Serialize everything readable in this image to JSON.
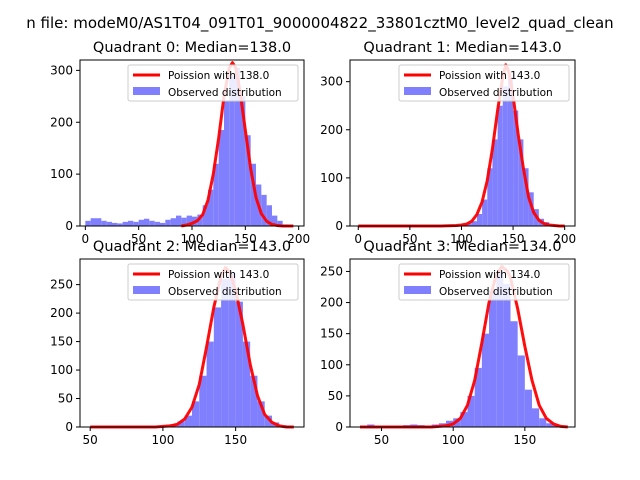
{
  "suptitle": "n file: modeM0/AS1T04_091T01_9000004822_33801cztM0_level2_quad_clean",
  "colors": {
    "poisson": "#ff0000",
    "observed": "#8080ff",
    "axis": "#000000"
  },
  "chart_data": [
    {
      "type": "histogram",
      "title": "Quadrant 0: Median=138.0",
      "median": 138.0,
      "xlim": [
        -5,
        205
      ],
      "ylim": [
        0,
        320
      ],
      "xticks": [
        0,
        50,
        100,
        150,
        200
      ],
      "yticks": [
        0,
        100,
        200,
        300
      ],
      "legend": {
        "placement": "top-right",
        "entries": [
          "Poission with 138.0",
          "Observed distribution"
        ]
      },
      "bin_edges": [
        0,
        5,
        10,
        15,
        20,
        25,
        30,
        35,
        40,
        45,
        50,
        55,
        60,
        65,
        70,
        75,
        80,
        85,
        90,
        95,
        100,
        105,
        110,
        115,
        120,
        125,
        130,
        135,
        140,
        145,
        150,
        155,
        160,
        165,
        170,
        175,
        180,
        185,
        190,
        195
      ],
      "counts": [
        10,
        15,
        15,
        10,
        8,
        6,
        5,
        8,
        10,
        8,
        12,
        14,
        10,
        8,
        6,
        12,
        15,
        20,
        16,
        20,
        18,
        22,
        40,
        70,
        120,
        185,
        240,
        290,
        305,
        250,
        175,
        120,
        80,
        60,
        40,
        20,
        10,
        3,
        2
      ],
      "curve": {
        "x": [
          90,
          95,
          100,
          105,
          110,
          115,
          120,
          125,
          130,
          135,
          138,
          141,
          145,
          150,
          155,
          160,
          165,
          170,
          175,
          180,
          185,
          190,
          195
        ],
        "y": [
          0,
          2,
          5,
          10,
          22,
          50,
          100,
          170,
          250,
          305,
          315,
          305,
          260,
          185,
          110,
          55,
          24,
          9,
          3,
          1,
          0,
          0,
          0
        ]
      }
    },
    {
      "type": "histogram",
      "title": "Quadrant 1: Median=143.0",
      "median": 143.0,
      "xlim": [
        -8,
        210
      ],
      "ylim": [
        0,
        345
      ],
      "xticks": [
        0,
        50,
        100,
        150,
        200
      ],
      "yticks": [
        0,
        100,
        200,
        300
      ],
      "legend": {
        "placement": "top-right",
        "entries": [
          "Poission with 143.0",
          "Observed distribution"
        ]
      },
      "bin_edges": [
        100,
        105,
        110,
        115,
        120,
        125,
        130,
        135,
        140,
        145,
        150,
        155,
        160,
        165,
        170,
        175,
        180,
        185,
        190,
        195,
        200
      ],
      "counts": [
        4,
        6,
        10,
        25,
        55,
        120,
        180,
        250,
        290,
        310,
        240,
        180,
        120,
        70,
        35,
        15,
        8,
        3,
        2,
        1
      ],
      "curve": {
        "x": [
          0,
          80,
          95,
          100,
          105,
          110,
          115,
          120,
          125,
          130,
          135,
          140,
          143,
          146,
          150,
          155,
          160,
          165,
          170,
          175,
          180,
          185,
          190,
          195,
          200
        ],
        "y": [
          0,
          0,
          1,
          2,
          4,
          10,
          24,
          50,
          95,
          160,
          240,
          310,
          335,
          320,
          270,
          190,
          120,
          60,
          28,
          12,
          5,
          2,
          1,
          0,
          0
        ]
      }
    },
    {
      "type": "histogram",
      "title": "Quadrant 2: Median=143.0",
      "median": 143.0,
      "xlim": [
        43,
        197
      ],
      "ylim": [
        0,
        295
      ],
      "xticks": [
        50,
        100,
        150
      ],
      "yticks": [
        0,
        50,
        100,
        150,
        200,
        250
      ],
      "legend": {
        "placement": "top-right",
        "entries": [
          "Poission with 143.0",
          "Observed distribution"
        ]
      },
      "bin_edges": [
        100,
        105,
        110,
        115,
        120,
        125,
        130,
        135,
        140,
        145,
        150,
        155,
        160,
        165,
        170,
        175,
        180,
        185,
        190
      ],
      "counts": [
        2,
        5,
        10,
        20,
        45,
        90,
        150,
        210,
        260,
        270,
        220,
        150,
        90,
        45,
        20,
        8,
        3,
        1
      ],
      "curve": {
        "x": [
          50,
          95,
          100,
          105,
          110,
          115,
          120,
          125,
          130,
          135,
          140,
          143,
          146,
          150,
          155,
          160,
          165,
          170,
          175,
          180,
          185,
          190
        ],
        "y": [
          0,
          0,
          1,
          2,
          5,
          14,
          35,
          75,
          140,
          210,
          265,
          280,
          272,
          240,
          180,
          110,
          55,
          22,
          8,
          2,
          0,
          0
        ]
      }
    },
    {
      "type": "histogram",
      "title": "Quadrant 3: Median=134.0",
      "median": 134.0,
      "xlim": [
        28,
        185
      ],
      "ylim": [
        0,
        270
      ],
      "xticks": [
        50,
        100,
        150
      ],
      "yticks": [
        0,
        50,
        100,
        150,
        200,
        250
      ],
      "legend": {
        "placement": "top-right",
        "entries": [
          "Poission with 134.0",
          "Observed distribution"
        ]
      },
      "bin_edges": [
        35,
        40,
        45,
        50,
        55,
        60,
        65,
        70,
        75,
        80,
        85,
        90,
        95,
        100,
        105,
        110,
        115,
        120,
        125,
        130,
        135,
        140,
        145,
        150,
        155,
        160,
        165,
        170,
        175
      ],
      "counts": [
        2,
        4,
        2,
        2,
        2,
        2,
        3,
        4,
        3,
        2,
        4,
        6,
        10,
        14,
        24,
        50,
        95,
        150,
        220,
        250,
        230,
        170,
        115,
        60,
        30,
        14,
        6,
        3
      ],
      "curve": {
        "x": [
          35,
          85,
          90,
          95,
          100,
          105,
          110,
          115,
          120,
          125,
          130,
          134,
          138,
          140,
          145,
          150,
          155,
          160,
          165,
          170,
          175,
          180
        ],
        "y": [
          0,
          0,
          1,
          2,
          5,
          14,
          35,
          75,
          135,
          200,
          245,
          258,
          250,
          240,
          190,
          130,
          75,
          35,
          14,
          5,
          1,
          0
        ]
      }
    }
  ]
}
